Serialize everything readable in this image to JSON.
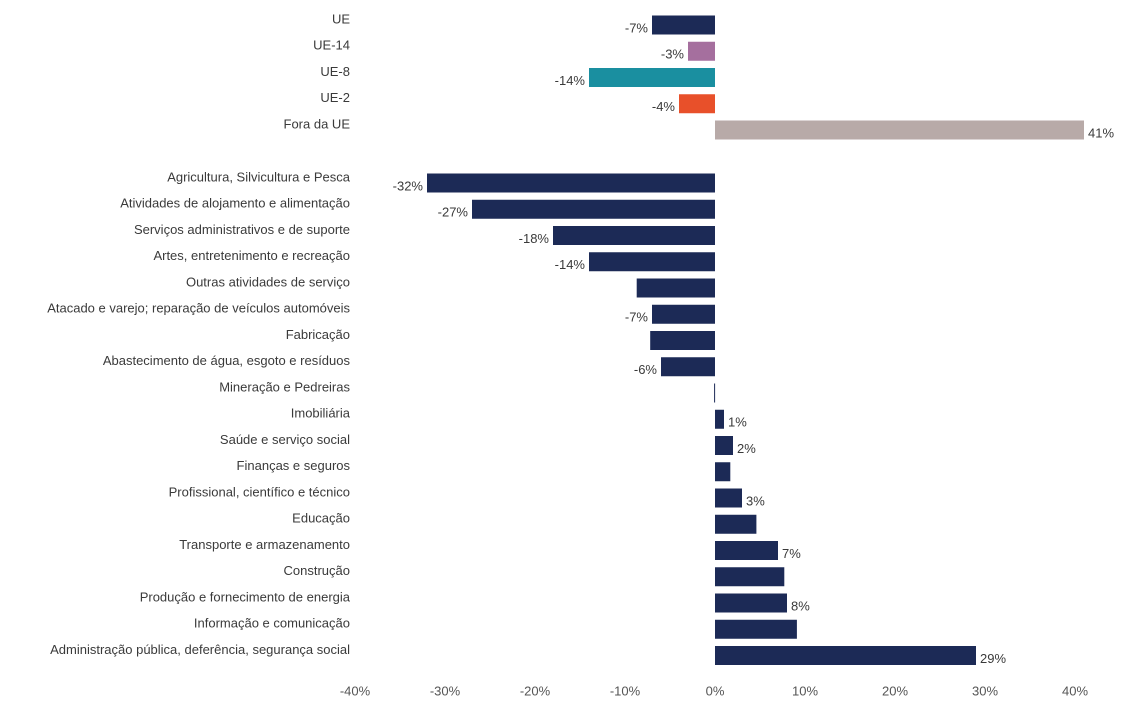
{
  "chart_data": [
    {
      "type": "barh",
      "categories": [
        "UE",
        "UE-14",
        "UE-8",
        "UE-2",
        "Fora da UE"
      ],
      "values": [
        -7,
        -3,
        -14,
        -4,
        41
      ],
      "value_labels": [
        "-7%",
        "-3%",
        "-14%",
        "-4%",
        "41%"
      ],
      "colors": [
        "#1c2a56",
        "#a56f9e",
        "#1a8fa0",
        "#e8502a",
        "#b8aaa8"
      ],
      "xlim": [
        -40,
        40
      ]
    },
    {
      "type": "barh",
      "categories": [
        "Agricultura, Silvicultura e Pesca",
        "Atividades de alojamento e alimentação",
        "Serviços administrativos e de suporte",
        "Artes, entretenimento e recreação",
        "Outras atividades de serviço",
        "Atacado e varejo; reparação de veículos automóveis",
        "Fabricação",
        "Abastecimento de água, esgoto e resíduos",
        "Mineração e Pedreiras",
        "Imobiliária",
        "Saúde e serviço social",
        "Finanças e seguros",
        "Profissional, científico e técnico",
        "Educação",
        "Transporte e armazenamento",
        "Construção",
        "Produção e fornecimento de energia",
        "Informação e comunicação",
        "Administração pública, deferência, segurança social"
      ],
      "values": [
        -32,
        -27,
        -18,
        -14,
        -8.7,
        -7,
        -7.2,
        -6,
        -0.1,
        1,
        2,
        1.7,
        3,
        4.6,
        7,
        7.7,
        8,
        9.1,
        29
      ],
      "value_labels": [
        "-32%",
        "-27%",
        "-18%",
        "-14%",
        null,
        "-7%",
        null,
        "-6%",
        null,
        "1%",
        "2%",
        null,
        "3%",
        null,
        "7%",
        null,
        "8%",
        null,
        "29%"
      ],
      "color": "#1c2a56",
      "xlim": [
        -40,
        40
      ],
      "xticks": [
        {
          "value": -40,
          "label": "-40%"
        },
        {
          "value": -30,
          "label": "-30%"
        },
        {
          "value": -20,
          "label": "-20%"
        },
        {
          "value": -10,
          "label": "-10%"
        },
        {
          "value": 0,
          "label": "0%"
        },
        {
          "value": 10,
          "label": "10%"
        },
        {
          "value": 20,
          "label": "20%"
        },
        {
          "value": 30,
          "label": "30%"
        },
        {
          "value": 40,
          "label": "40%"
        }
      ]
    }
  ]
}
